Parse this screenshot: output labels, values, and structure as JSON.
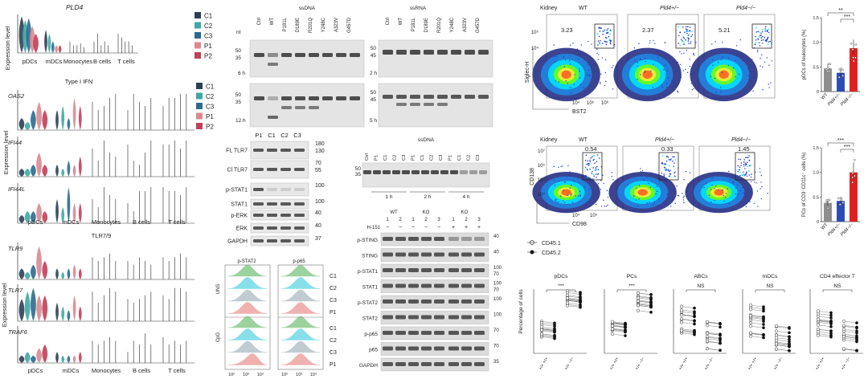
{
  "colors": {
    "C1": "#2e3f55",
    "C2": "#3fa8a3",
    "C3": "#2c6a8e",
    "P1": "#d88a92",
    "P2": "#c0405a",
    "violin_line": "#444444",
    "wt_bar": "#8e8e8e",
    "het_bar": "#2b4bb5",
    "ko_bar": "#e02020",
    "flow_stat2": "#4caf50",
    "flow_p65": "#26a69a"
  },
  "cluster_legend": [
    "C1",
    "C2",
    "C3",
    "P1",
    "P2"
  ],
  "violin": {
    "panel_a": {
      "gene": "PLD4",
      "ylabel": "Expression level",
      "groups": [
        "pDCs",
        "mDCs",
        "Monocytes",
        "B cells",
        "T cells"
      ]
    },
    "panel_b": {
      "title": "Type I IFN",
      "genes": [
        "OAS2",
        "IFI44",
        "IFI44L"
      ],
      "ylabel": "Expression level",
      "groups": [
        "pDCs",
        "mDCs",
        "Monocytes",
        "B cells",
        "T cells"
      ]
    },
    "panel_c": {
      "title": "TLR7/9",
      "genes": [
        "TLR9",
        "TLR7",
        "TRAF6"
      ],
      "ylabel": "Expression level",
      "groups": [
        "pDCs",
        "mDCs",
        "Monocytes",
        "B cells",
        "T cells"
      ]
    }
  },
  "gels": {
    "ssdna_title": "ssDNA",
    "ssrna_title": "ssRNA",
    "lanes": [
      "Ctrl",
      "WT",
      "P181L",
      "D189E",
      "R201Q",
      "Y248C",
      "A323V",
      "G457D"
    ],
    "nt_label": "nt",
    "size_marks_a": [
      "50",
      "35"
    ],
    "size_marks_b": [
      "50",
      "45"
    ],
    "times_a": [
      "6 h",
      "12 h"
    ],
    "times_b": [
      "2 h",
      "5 h"
    ],
    "ssdna2_title": "ssDNA",
    "ssdna2_lanes": [
      "Ctrl",
      "P1",
      "C1",
      "C2",
      "C3",
      "P1",
      "C1",
      "C2",
      "C3",
      "P1",
      "C1",
      "C2",
      "C3"
    ],
    "ssdna2_times": [
      "1 h",
      "2 h",
      "4 h"
    ],
    "ssdna2_marks": [
      "50",
      "35"
    ]
  },
  "western_left": {
    "lanes": [
      "P1",
      "C1",
      "C2",
      "C3"
    ],
    "rows": [
      {
        "label": "FL TLR7",
        "kda": [
          "180",
          "130"
        ]
      },
      {
        "label": "Cl TLR7",
        "kda": [
          "70",
          "55"
        ]
      },
      {
        "label": "p-STAT1",
        "kda": [
          "100"
        ]
      },
      {
        "label": "STAT1",
        "kda": [
          "100"
        ]
      },
      {
        "label": "p-ERK",
        "kda": [
          "40"
        ]
      },
      {
        "label": "ERK",
        "kda": [
          "40"
        ]
      },
      {
        "label": "GAPDH",
        "kda": [
          "37"
        ]
      }
    ]
  },
  "flow_hist": {
    "titles": [
      "p-STAT2",
      "p-p65"
    ],
    "row_labels": [
      "UNS",
      "CpG"
    ],
    "lanes": [
      "C1",
      "C2",
      "C3",
      "P1"
    ],
    "axis_ticks": [
      "10²",
      "10³",
      "10⁴"
    ]
  },
  "western_right": {
    "group_labels": [
      "WT",
      "KO",
      "KO"
    ],
    "lane_nums": [
      "1",
      "2",
      "1",
      "2",
      "3",
      "1",
      "2",
      "3"
    ],
    "h151_label": "H-151",
    "h151_marks": [
      "−",
      "−",
      "−",
      "−",
      "−",
      "+",
      "+",
      "+"
    ],
    "rows": [
      {
        "label": "p-STING",
        "kda": [
          "40"
        ]
      },
      {
        "label": "STING",
        "kda": [
          "40"
        ]
      },
      {
        "label": "p-STAT1",
        "kda": [
          "100",
          "70"
        ]
      },
      {
        "label": "STAT1",
        "kda": [
          "100",
          "70"
        ]
      },
      {
        "label": "p-STAT2",
        "kda": [
          "100"
        ]
      },
      {
        "label": "STAT2",
        "kda": [
          "100"
        ]
      },
      {
        "label": "p-p65",
        "kda": [
          "70"
        ]
      },
      {
        "label": "p65",
        "kda": [
          "70"
        ]
      },
      {
        "label": "GAPDH",
        "kda": [
          "35"
        ]
      }
    ]
  },
  "flow_top": {
    "tissue": "Kidney",
    "genotypes": [
      "WT",
      "Pld4+/−",
      "Pld4−/−"
    ],
    "percents": [
      "3.23",
      "2.37",
      "5.21"
    ],
    "ylabel": "Siglec-H",
    "xlabel": "BST2",
    "y_ticks": [
      "10⁵",
      "10⁴"
    ],
    "x_ticks": [
      "10⁴",
      "10⁵",
      "10⁶"
    ]
  },
  "flow_mid": {
    "tissue": "Kidney",
    "genotypes": [
      "WT",
      "Pld4+/−",
      "Pld4−/−"
    ],
    "percents": [
      "0.54",
      "0.33",
      "1.45"
    ],
    "ylabel": "CD138",
    "xlabel": "CD98",
    "y_ticks": [
      "10⁷",
      "10⁶",
      "10⁵",
      "10⁴"
    ],
    "x_ticks": [
      "10⁴",
      "10⁵"
    ]
  },
  "bar_top": {
    "ylabel": "pDCs of leukocytes (%)",
    "y_ticks": [
      "0",
      "0.5",
      "1.0",
      "1.5"
    ],
    "sig": [
      "**",
      "***"
    ],
    "categories": [
      "WT",
      "Pld4+/−",
      "Pld4−/−"
    ]
  },
  "bar_mid": {
    "ylabel": "PCs of CD3⁻CD11c⁻ cells (%)",
    "y_ticks": [
      "0",
      "0.5",
      "1.0",
      "1.5"
    ],
    "sig": [
      "***",
      "***"
    ],
    "categories": [
      "WT",
      "Pld4+/−",
      "Pld4−/−"
    ]
  },
  "paired": {
    "legend": [
      "CD45.1",
      "CD45.2"
    ],
    "ylabel": "Percentage of cells",
    "x_labels": [
      "+/+ +/+",
      "+/+ −/−"
    ],
    "panels": [
      {
        "title": "pDCs",
        "sig": "***"
      },
      {
        "title": "PCs",
        "sig": "***"
      },
      {
        "title": "ABCs",
        "sig": "NS"
      },
      {
        "title": "mDCs",
        "sig": "NS"
      },
      {
        "title": "CD4 effector T",
        "sig": "NS"
      }
    ]
  },
  "chart_data": [
    {
      "type": "bar",
      "title": "",
      "categories": [
        "WT",
        "Pld4+/−",
        "Pld4−/−"
      ],
      "values": [
        0.47,
        0.38,
        0.88
      ],
      "ylabel": "pDCs of leukocytes (%)",
      "ylim": [
        0,
        1.5
      ]
    },
    {
      "type": "bar",
      "title": "",
      "categories": [
        "WT",
        "Pld4+/−",
        "Pld4−/−"
      ],
      "values": [
        0.38,
        0.42,
        1.0
      ],
      "ylabel": "PCs of CD3⁻CD11c⁻ cells (%)",
      "ylim": [
        0,
        1.5
      ]
    }
  ]
}
